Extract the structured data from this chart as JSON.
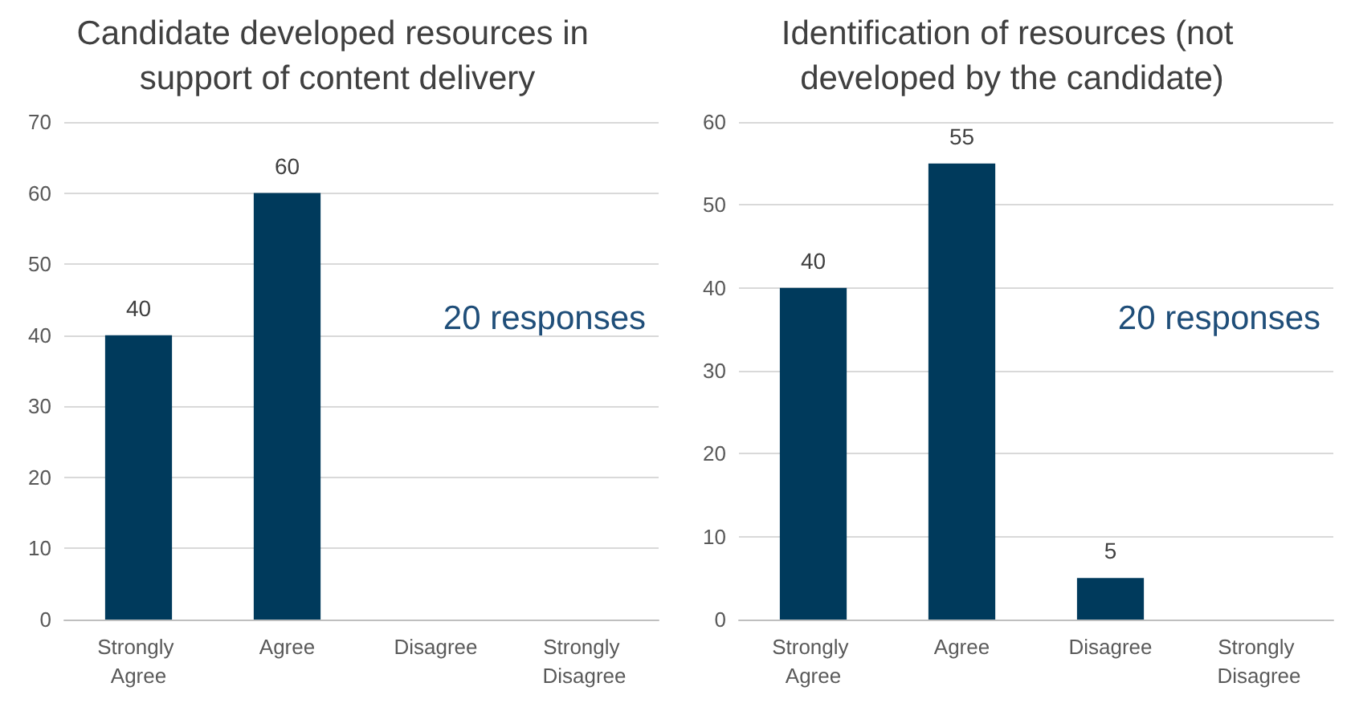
{
  "chart_data": [
    {
      "type": "bar",
      "title": "Candidate developed resources in support of content delivery",
      "categories": [
        "Strongly Agree",
        "Agree",
        "Disagree",
        "Strongly Disagree"
      ],
      "values": [
        40,
        60,
        0,
        0
      ],
      "value_labels": [
        "40",
        "60",
        null,
        null
      ],
      "color": "#003a5c",
      "ylim": [
        0,
        70
      ],
      "yticks": [
        0,
        10,
        20,
        30,
        40,
        50,
        60,
        70
      ],
      "grid": "y",
      "annotations": [
        "20 responses"
      ]
    },
    {
      "type": "bar",
      "title": "Identification of resources (not developed by the candidate)",
      "categories": [
        "Strongly Agree",
        "Agree",
        "Disagree",
        "Strongly Disagree"
      ],
      "values": [
        40,
        55,
        5,
        0
      ],
      "value_labels": [
        "40",
        "55",
        "5",
        null
      ],
      "color": "#003a5c",
      "ylim": [
        0,
        60
      ],
      "yticks": [
        0,
        10,
        20,
        30,
        40,
        50,
        60
      ],
      "grid": "y",
      "annotations": [
        "20 responses"
      ]
    }
  ]
}
